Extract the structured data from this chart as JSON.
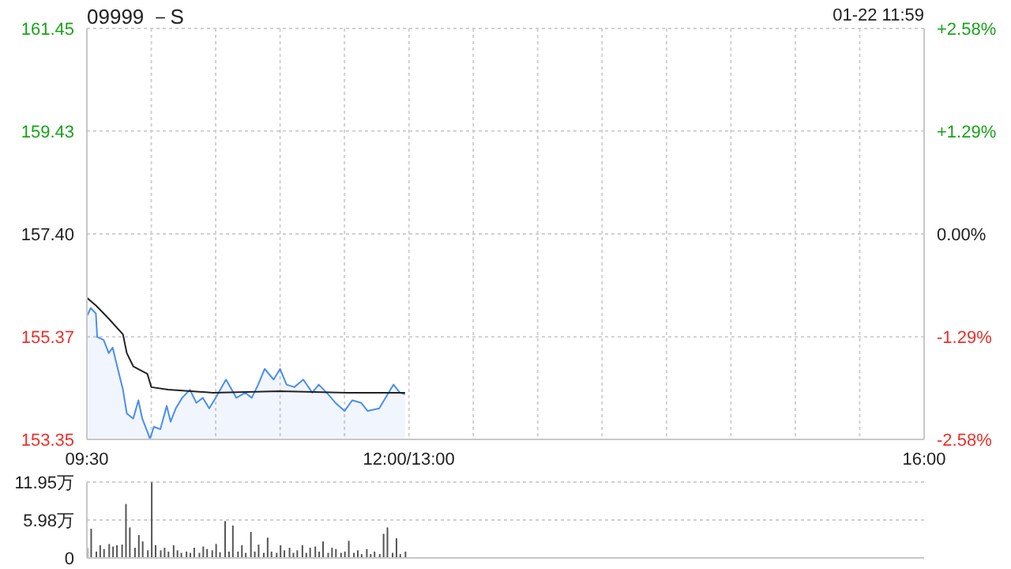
{
  "chart_data": [
    {
      "type": "area",
      "title": "09999 －S",
      "annotations": [
        "01-22 11:59"
      ],
      "xlim": [
        9.5,
        16
      ],
      "xticks": [
        {
          "value": 9.5,
          "label": "09:30"
        },
        {
          "value": 10,
          "label": null
        },
        {
          "value": 10.5,
          "label": null
        },
        {
          "value": 11,
          "label": null
        },
        {
          "value": 11.5,
          "label": null
        },
        {
          "value": 12,
          "label": "12:00/13:00"
        },
        {
          "value": 12.5,
          "label": null
        },
        {
          "value": 13,
          "label": null
        },
        {
          "value": 13.5,
          "label": null
        },
        {
          "value": 14,
          "label": null
        },
        {
          "value": 14.5,
          "label": null
        },
        {
          "value": 15,
          "label": null
        },
        {
          "value": 15.5,
          "label": null
        },
        {
          "value": 16,
          "label": "16:00"
        }
      ],
      "ylim": [
        153.35,
        161.45
      ],
      "yticks": [
        {
          "value": 153.35,
          "label": "153.35"
        },
        {
          "value": 155.37,
          "label": "155.37"
        },
        {
          "value": 157.4,
          "label": "157.40"
        },
        {
          "value": 159.43,
          "label": "159.43"
        },
        {
          "value": 161.45,
          "label": "161.45"
        }
      ],
      "y2lim": [
        -2.58,
        2.58
      ],
      "y2ticks": [
        {
          "value": -2.58,
          "label": "-2.58%"
        },
        {
          "value": -1.29,
          "label": "-1.29%"
        },
        {
          "value": 0,
          "label": "0.00%"
        },
        {
          "value": 1.29,
          "label": "+1.29%"
        },
        {
          "value": 2.58,
          "label": "+2.58%"
        }
      ],
      "grid": true,
      "series": [
        {
          "type": "area",
          "color": "#4a8ef0",
          "x": [
            9.5,
            9.53,
            9.57,
            9.58,
            9.63,
            9.67,
            9.7,
            9.74,
            9.78,
            9.81,
            9.86,
            9.9,
            9.93,
            9.97,
            9.99,
            10.02,
            10.07,
            10.12,
            10.15,
            10.19,
            10.24,
            10.3,
            10.35,
            10.4,
            10.45,
            10.5,
            10.58,
            10.66,
            10.73,
            10.78,
            10.83,
            10.88,
            10.95,
            11,
            11.05,
            11.11,
            11.18,
            11.25,
            11.3,
            11.38,
            11.43,
            11.5,
            11.56,
            11.63,
            11.68,
            11.77,
            11.83,
            11.88,
            11.93,
            11.97
          ],
          "values": [
            155.78,
            155.94,
            155.83,
            155.37,
            155.31,
            155.05,
            155.16,
            154.74,
            154.33,
            153.86,
            153.76,
            154.12,
            153.76,
            153.5,
            153.36,
            153.6,
            153.55,
            154.01,
            153.7,
            153.96,
            154.17,
            154.33,
            154.07,
            154.17,
            153.96,
            154.17,
            154.53,
            154.17,
            154.27,
            154.17,
            154.43,
            154.74,
            154.53,
            154.74,
            154.43,
            154.38,
            154.53,
            154.27,
            154.43,
            154.22,
            154.07,
            153.91,
            154.12,
            154.07,
            153.91,
            153.96,
            154.22,
            154.43,
            154.27,
            154.24
          ]
        },
        {
          "type": "line",
          "color": "#222222",
          "x": [
            9.5,
            9.57,
            9.67,
            9.78,
            9.81,
            9.86,
            9.97,
            10,
            10.13,
            10.48,
            11,
            11.52,
            11.97
          ],
          "values": [
            156.14,
            155.99,
            155.73,
            155.42,
            155.05,
            154.79,
            154.64,
            154.38,
            154.33,
            154.27,
            154.3,
            154.27,
            154.27
          ]
        }
      ]
    },
    {
      "type": "bar",
      "color": "#555555",
      "xlim": [
        9.5,
        16
      ],
      "ylim": [
        0,
        11.95
      ],
      "yticks": [
        {
          "value": 0,
          "label": "0"
        },
        {
          "value": 5.98,
          "label": "5.98万"
        },
        {
          "value": 11.95,
          "label": "11.95万"
        }
      ],
      "grid": "y",
      "tick_labels": "y",
      "x": [
        9.5,
        9.53,
        9.57,
        9.6,
        9.63,
        9.67,
        9.7,
        9.73,
        9.77,
        9.8,
        9.83,
        9.87,
        9.9,
        9.93,
        9.97,
        10,
        10.03,
        10.07,
        10.1,
        10.13,
        10.17,
        10.2,
        10.23,
        10.27,
        10.3,
        10.33,
        10.37,
        10.4,
        10.43,
        10.47,
        10.5,
        10.53,
        10.57,
        10.6,
        10.63,
        10.67,
        10.7,
        10.73,
        10.77,
        10.8,
        10.83,
        10.87,
        10.9,
        10.93,
        10.97,
        11,
        11.03,
        11.07,
        11.1,
        11.13,
        11.17,
        11.2,
        11.23,
        11.27,
        11.3,
        11.33,
        11.37,
        11.4,
        11.43,
        11.47,
        11.5,
        11.53,
        11.57,
        11.6,
        11.63,
        11.67,
        11.7,
        11.73,
        11.77,
        11.8,
        11.83,
        11.87,
        11.9,
        11.93,
        11.97
      ],
      "values": [
        1.6,
        4.6,
        1.0,
        2.0,
        1.4,
        2.2,
        1.8,
        2.0,
        2.1,
        8.5,
        4.8,
        1.6,
        3.6,
        2.6,
        1.2,
        11.9,
        2.0,
        1.2,
        1.6,
        1.0,
        2.0,
        1.2,
        0.8,
        1.0,
        0.8,
        1.6,
        0.8,
        1.8,
        1.4,
        1.2,
        2.2,
        0.9,
        5.8,
        1.0,
        5.1,
        1.0,
        2.0,
        0.8,
        4.1,
        1.0,
        2.1,
        0.8,
        3.2,
        1.0,
        0.8,
        2.0,
        1.2,
        1.6,
        0.8,
        1.2,
        2.0,
        0.8,
        1.6,
        1.8,
        1.0,
        2.6,
        0.8,
        1.6,
        1.4,
        0.8,
        1.0,
        2.7,
        0.8,
        1.2,
        0.6,
        1.4,
        0.6,
        1.0,
        0.6,
        3.8,
        4.8,
        0.8,
        3.1,
        0.6,
        1.0
      ]
    }
  ]
}
